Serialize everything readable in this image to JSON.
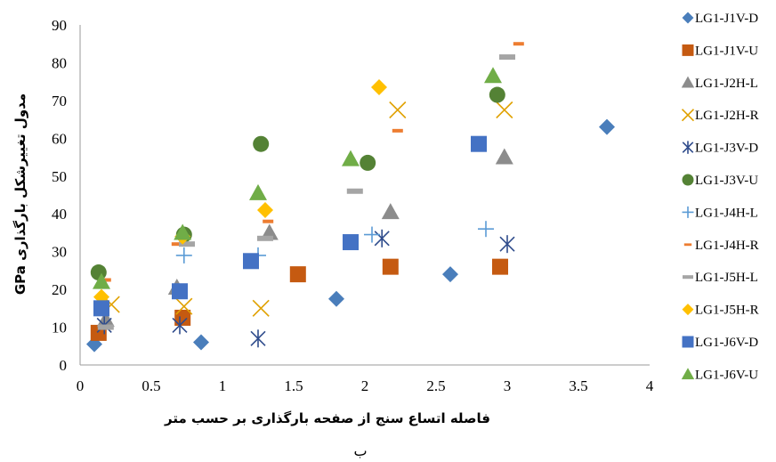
{
  "chart_data": {
    "type": "scatter",
    "xlabel": "فاصله اتساع سنج از صفحه بارگذاری بر حسب متر",
    "ylabel": "مدول تغییرشکل بارگذاری GPa",
    "caption": "ب",
    "xlim": [
      0,
      4
    ],
    "ylim": [
      0,
      90
    ],
    "x_ticks": [
      "0",
      "0.5",
      "1",
      "1.5",
      "2",
      "2.5",
      "3",
      "3.5",
      "4"
    ],
    "y_ticks": [
      "0",
      "10",
      "20",
      "30",
      "40",
      "50",
      "60",
      "70",
      "80",
      "90"
    ],
    "grid": false,
    "legend_position": "right",
    "series": [
      {
        "name": "LG1-J1V-D",
        "marker": "diamond",
        "color": "#4a7ebb",
        "points": [
          [
            0.1,
            5.5
          ],
          [
            0.85,
            6
          ],
          [
            1.8,
            17.5
          ],
          [
            2.6,
            24
          ],
          [
            3.7,
            63
          ]
        ]
      },
      {
        "name": "LG1-J1V-U",
        "marker": "square",
        "color": "#c55a11",
        "points": [
          [
            0.13,
            8.5
          ],
          [
            0.72,
            12.5
          ],
          [
            1.53,
            24
          ],
          [
            2.18,
            26
          ],
          [
            2.95,
            26
          ]
        ]
      },
      {
        "name": "LG1-J2H-L",
        "marker": "triangle",
        "color": "#8c8c8c",
        "points": [
          [
            0.18,
            12
          ],
          [
            0.68,
            20.5
          ],
          [
            1.33,
            35
          ],
          [
            2.18,
            40.5
          ],
          [
            2.98,
            55
          ]
        ]
      },
      {
        "name": "LG1-J2H-R",
        "marker": "x",
        "color": "#e0a100",
        "points": [
          [
            0.22,
            16
          ],
          [
            0.73,
            15.5
          ],
          [
            1.27,
            15
          ],
          [
            2.23,
            67.5
          ],
          [
            2.98,
            67.5
          ]
        ]
      },
      {
        "name": "LG1-J3V-D",
        "marker": "star",
        "color": "#2f4c8c",
        "points": [
          [
            0.17,
            10.5
          ],
          [
            0.7,
            10.5
          ],
          [
            1.25,
            7
          ],
          [
            2.12,
            33.5
          ],
          [
            3.0,
            32
          ]
        ]
      },
      {
        "name": "LG1-J3V-U",
        "marker": "circle",
        "color": "#548235",
        "points": [
          [
            0.13,
            24.5
          ],
          [
            0.73,
            34.5
          ],
          [
            1.27,
            58.5
          ],
          [
            2.02,
            53.5
          ],
          [
            2.93,
            71.5
          ]
        ]
      },
      {
        "name": "LG1-J4H-L",
        "marker": "plus",
        "color": "#5b9bd5",
        "points": [
          [
            0.73,
            29
          ],
          [
            1.25,
            29
          ],
          [
            2.05,
            34.5
          ],
          [
            2.85,
            36
          ]
        ]
      },
      {
        "name": "LG1-J4H-R",
        "marker": "dash",
        "color": "#ed7d31",
        "points": [
          [
            0.18,
            22.5
          ],
          [
            0.68,
            32
          ],
          [
            1.32,
            38
          ],
          [
            2.23,
            62
          ],
          [
            3.08,
            85
          ]
        ]
      },
      {
        "name": "LG1-J5H-L",
        "marker": "dash",
        "color": "#a5a5a5",
        "points": [
          [
            0.18,
            10
          ],
          [
            0.75,
            32
          ],
          [
            1.3,
            33.5
          ],
          [
            1.93,
            46
          ],
          [
            3.0,
            81.5
          ]
        ]
      },
      {
        "name": "LG1-J5H-R",
        "marker": "diamond",
        "color": "#ffc000",
        "points": [
          [
            0.15,
            18
          ],
          [
            0.72,
            34
          ],
          [
            1.3,
            41
          ],
          [
            2.1,
            73.5
          ]
        ]
      },
      {
        "name": "LG1-J6V-D",
        "marker": "square",
        "color": "#4472c4",
        "points": [
          [
            0.15,
            15
          ],
          [
            0.7,
            19.5
          ],
          [
            1.2,
            27.5
          ],
          [
            1.9,
            32.5
          ],
          [
            2.8,
            58.5
          ]
        ]
      },
      {
        "name": "LG1-J6V-U",
        "marker": "triangle",
        "color": "#70ad47",
        "points": [
          [
            0.15,
            22
          ],
          [
            0.72,
            35
          ],
          [
            1.25,
            45.5
          ],
          [
            1.9,
            54.5
          ],
          [
            2.9,
            76.5
          ]
        ]
      }
    ]
  }
}
